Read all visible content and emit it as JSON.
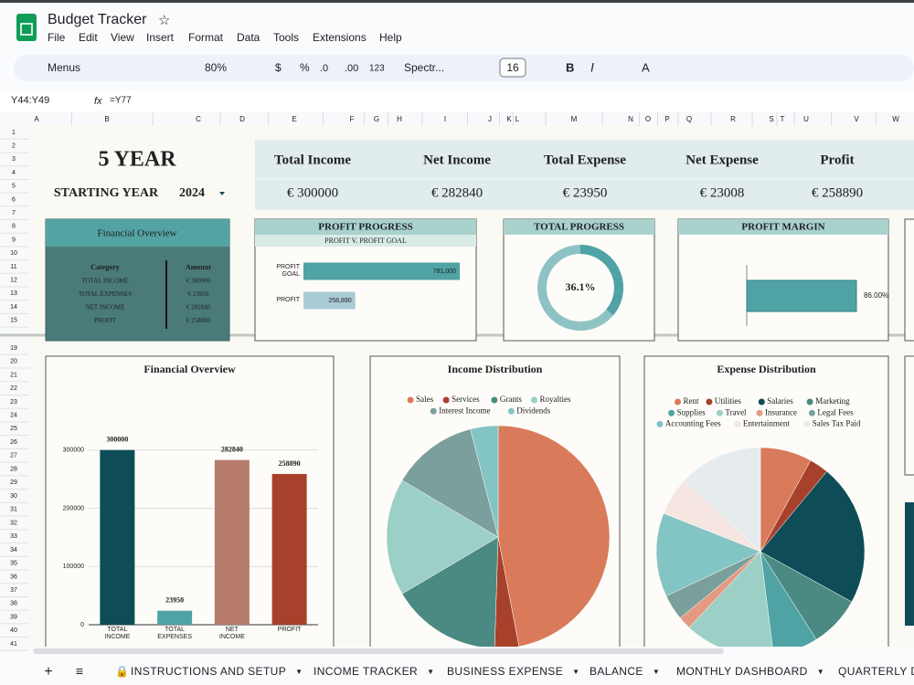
{
  "app": {
    "title": "Budget Tracker",
    "menu": [
      "File",
      "Edit",
      "View",
      "Insert",
      "Format",
      "Data",
      "Tools",
      "Extensions",
      "Help"
    ]
  },
  "toolbar": {
    "search": "Menus",
    "zoom": "80%",
    "currency": "$",
    "percent": "%",
    "decrease_decimals": ".0",
    "increase_decimals": ".00",
    "number_format": "123",
    "font": "Spectr...",
    "font_size": "16",
    "bold": "B",
    "italic": "I",
    "text_color": "A"
  },
  "formula_bar": {
    "cell": "Y44:Y49",
    "formula": "=Y77"
  },
  "columns": [
    "A",
    "B",
    "C",
    "D",
    "E",
    "F",
    "G",
    "H",
    "I",
    "J",
    "K",
    "L",
    "M",
    "N",
    "O",
    "P",
    "Q",
    "R",
    "S",
    "T",
    "U",
    "V",
    "W"
  ],
  "rows": [
    1,
    2,
    3,
    4,
    5,
    6,
    7,
    8,
    9,
    10,
    11,
    12,
    13,
    14,
    15,
    19,
    20,
    21,
    22,
    23,
    24,
    25,
    26,
    27,
    28,
    29,
    30,
    31,
    32,
    33,
    34,
    35,
    36,
    37,
    38,
    39,
    40,
    41
  ],
  "sheet_tabs": [
    "INSTRUCTIONS AND SETUP",
    "INCOME TRACKER",
    "BUSINESS EXPENSE",
    "BALANCE",
    "MONTHLY DASHBOARD",
    "QUARTERLY D"
  ],
  "dashboard": {
    "title": "5 YEAR",
    "starting_year_label": "STARTING YEAR",
    "starting_year": "2024",
    "summary": {
      "headers": [
        "Total Income",
        "Net Income",
        "Total Expense",
        "Net Expense",
        "Profit"
      ],
      "values": [
        "€ 300000",
        "€ 282840",
        "€ 23950",
        "€ 23008",
        "€ 258890"
      ]
    },
    "overview_table": {
      "title": "Financial Overview",
      "headers": [
        "Category",
        "Amount"
      ],
      "rows": [
        [
          "TOTAL INCOME",
          "€ 300000"
        ],
        [
          "TOTAL EXPENSES",
          "€ 23950"
        ],
        [
          "NET INCOME",
          "€ 282840"
        ],
        [
          "PROFIT",
          "€ 258890"
        ]
      ]
    }
  },
  "chart_data": [
    {
      "type": "hbar",
      "title": "PROFIT PROGRESS",
      "subtitle": "PROFIT V. PROFIT GOAL",
      "categories": [
        "PROFIT GOAL",
        "PROFIT"
      ],
      "values": [
        781000,
        258890
      ],
      "value_labels": [
        "781,000",
        "258,890"
      ],
      "colors": [
        "#4fa3a4",
        "#a9cbd6"
      ]
    },
    {
      "type": "donut",
      "title": "TOTAL PROGRESS",
      "values": [
        36.1
      ],
      "value_labels": [
        "36.1%"
      ],
      "color": "#4fa3a4"
    },
    {
      "type": "hbar",
      "title": "PROFIT MARGIN",
      "values": [
        86
      ],
      "value_labels": [
        "86.00%"
      ],
      "colors": [
        "#4fa3a4"
      ]
    },
    {
      "type": "bar",
      "title": "Financial Overview",
      "categories": [
        "TOTAL INCOME",
        "TOTAL EXPENSES",
        "NET INCOME",
        "PROFIT"
      ],
      "values": [
        300000,
        23950,
        282840,
        258890
      ],
      "colors": [
        "#0e4d57",
        "#4fa3a4",
        "#b57a6c",
        "#a8412b"
      ],
      "ylim": [
        0,
        320000
      ],
      "yticks": [
        0,
        100000,
        200000,
        300000
      ],
      "grid": true
    },
    {
      "type": "pie",
      "title": "Income Distribution",
      "categories": [
        "Sales",
        "Services",
        "Grants",
        "Royalties",
        "Interest Income",
        "Dividends"
      ],
      "values": [
        47,
        3.5,
        16,
        17,
        12.5,
        4
      ],
      "colors": [
        "#d97a5b",
        "#a8412b",
        "#4b8a83",
        "#9ccfc6",
        "#7a9f9c",
        "#83c4c4"
      ]
    },
    {
      "type": "pie",
      "title": "Expense Distribution",
      "categories": [
        "Rent",
        "Utilities",
        "Salaries",
        "Marketing",
        "Supplies",
        "Travel",
        "Insurance",
        "Legal Fees",
        "Accounting Fees",
        "Entertainment",
        "Sales Tax Paid"
      ],
      "values": [
        8,
        3,
        22,
        8,
        7,
        14,
        2,
        4,
        13,
        6,
        13
      ],
      "colors": [
        "#d97a5b",
        "#a8412b",
        "#0e4d57",
        "#4b8a83",
        "#4fa3a4",
        "#9ccfc6",
        "#e49a82",
        "#7a9f9c",
        "#83c4c4",
        "#f5e6e1",
        "#e6ebee"
      ]
    }
  ]
}
